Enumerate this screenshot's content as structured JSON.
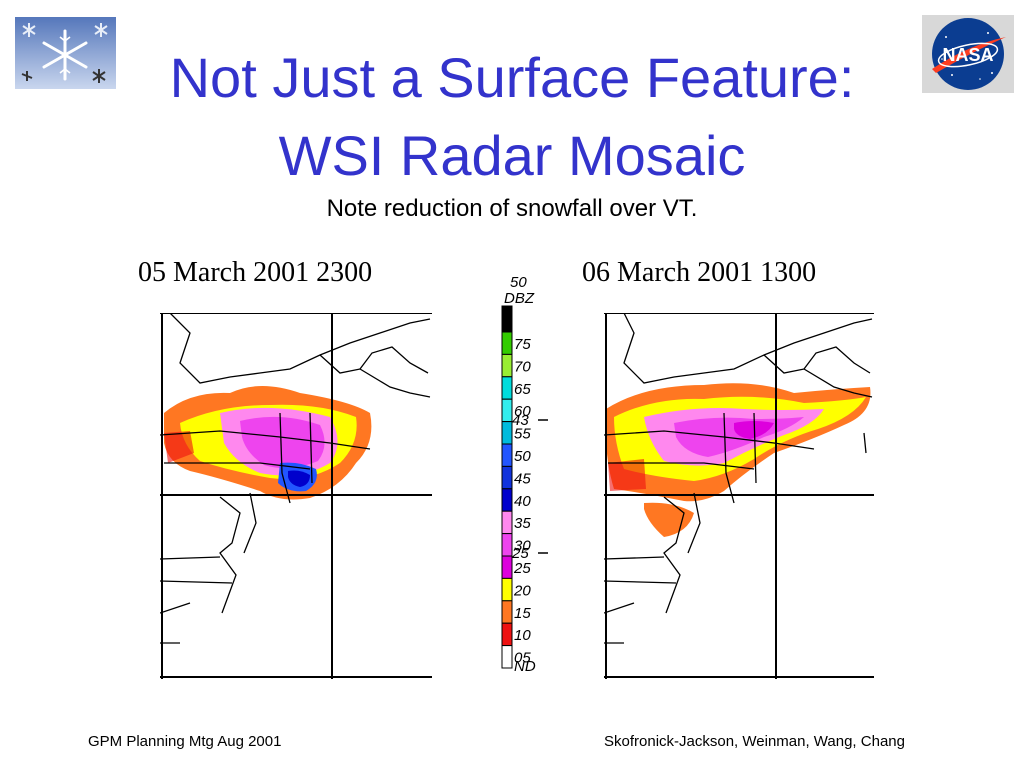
{
  "slide": {
    "title_line1": "Not Just a Surface Feature:",
    "title_line2": "WSI Radar Mosaic",
    "subtitle": "Note reduction of snowfall over VT.",
    "left_caption": "05 March 2001 2300",
    "right_caption": "06 March 2001 1300",
    "footer_left": "GPM Planning Mtg Aug 2001",
    "footer_right": "Skofronick-Jackson, Weinman, Wang, Chang",
    "logo_text": "NASA"
  },
  "legend": {
    "unit": "DBZ",
    "top_label": "50",
    "bottom_label": "ND",
    "marker_high": "43",
    "marker_low": "25",
    "levels": [
      {
        "label": "75",
        "color": "#33cc00"
      },
      {
        "label": "70",
        "color": "#99ee33"
      },
      {
        "label": "65",
        "color": "#00dddd"
      },
      {
        "label": "60",
        "color": "#33eeee"
      },
      {
        "label": "55",
        "color": "#00bbdd"
      },
      {
        "label": "50",
        "color": "#2255ff"
      },
      {
        "label": "45",
        "color": "#1133dd"
      },
      {
        "label": "40",
        "color": "#0000cc"
      },
      {
        "label": "35",
        "color": "#ff88ee"
      },
      {
        "label": "30",
        "color": "#ee44ee"
      },
      {
        "label": "25",
        "color": "#dd00dd"
      },
      {
        "label": "20",
        "color": "#ffff00"
      },
      {
        "label": "15",
        "color": "#ff7722"
      },
      {
        "label": "10",
        "color": "#ee1111"
      },
      {
        "label": "05",
        "color": "#ffffff"
      }
    ],
    "top_color": "#000000"
  }
}
